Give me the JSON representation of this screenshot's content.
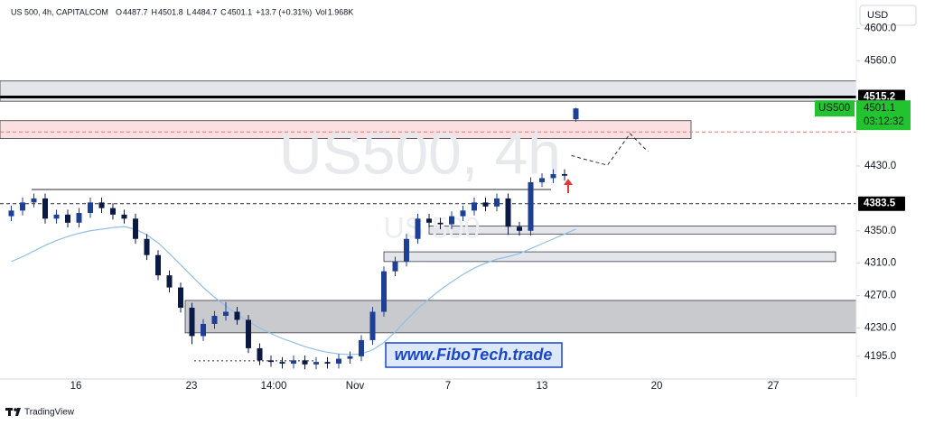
{
  "chart_data": {
    "type": "candlestick",
    "symbol": "US 500, 4h, CAPITALCOM",
    "ohlc_labels": [
      "O",
      "H",
      "L",
      "C"
    ],
    "change": "+13.7 (+0.31%)",
    "volume_label": "Vol",
    "volume": "1.968K",
    "currency": "USD",
    "watermark": "US500, 4h",
    "watermark_small": "US 500",
    "last_price_tag": "US500",
    "countdown": "03:12:32",
    "brand": "www.FiboTech.trade",
    "footer": "TradingView",
    "up_color": "#1d3f96",
    "down_color": "#0b1a45",
    "x": [
      1,
      2,
      3,
      4,
      5,
      6,
      7,
      8,
      9,
      10,
      11,
      12,
      13,
      14,
      15,
      16,
      17,
      18,
      19,
      20,
      21,
      22,
      23,
      24,
      25,
      26,
      27,
      28,
      29,
      30,
      31,
      32,
      33,
      34,
      35,
      36,
      37,
      38,
      39,
      40,
      41,
      42,
      43,
      44,
      45,
      46,
      47,
      48,
      49,
      50,
      51
    ],
    "open": [
      4368,
      4375,
      4385,
      4390,
      4365,
      4370,
      4360,
      4372,
      4385,
      4378,
      4370,
      4365,
      4340,
      4320,
      4295,
      4280,
      4255,
      4220,
      4235,
      4245,
      4250,
      4240,
      4205,
      4190,
      4188,
      4186,
      4190,
      4185,
      4188,
      4186,
      4192,
      4195,
      4215,
      4250,
      4300,
      4312,
      4340,
      4365,
      4360,
      4358,
      4368,
      4375,
      4385,
      4380,
      4390,
      4355,
      4350,
      4410,
      4415,
      4420,
      4487.7
    ],
    "high": [
      4381,
      4391,
      4396,
      4396,
      4376,
      4376,
      4378,
      4391,
      4391,
      4384,
      4376,
      4371,
      4346,
      4326,
      4301,
      4286,
      4261,
      4241,
      4251,
      4262,
      4256,
      4246,
      4211,
      4196,
      4194,
      4196,
      4196,
      4194,
      4194,
      4198,
      4201,
      4221,
      4256,
      4306,
      4318,
      4346,
      4371,
      4371,
      4366,
      4374,
      4381,
      4391,
      4391,
      4396,
      4396,
      4361,
      4416,
      4421,
      4426,
      4426,
      4501.8
    ],
    "low": [
      4362,
      4369,
      4379,
      4359,
      4359,
      4354,
      4354,
      4366,
      4372,
      4364,
      4359,
      4334,
      4314,
      4289,
      4274,
      4249,
      4210,
      4214,
      4229,
      4239,
      4234,
      4199,
      4184,
      4182,
      4180,
      4180,
      4179,
      4179,
      4180,
      4180,
      4186,
      4189,
      4209,
      4244,
      4294,
      4306,
      4334,
      4354,
      4352,
      4352,
      4362,
      4369,
      4374,
      4374,
      4345,
      4344,
      4344,
      4404,
      4409,
      4412,
      4484.7
    ],
    "close": [
      4375,
      4385,
      4390,
      4365,
      4370,
      4360,
      4372,
      4385,
      4378,
      4370,
      4365,
      4340,
      4320,
      4295,
      4280,
      4255,
      4220,
      4235,
      4245,
      4250,
      4240,
      4205,
      4190,
      4188,
      4186,
      4190,
      4185,
      4188,
      4186,
      4192,
      4195,
      4215,
      4250,
      4300,
      4312,
      4340,
      4365,
      4360,
      4358,
      4368,
      4375,
      4385,
      4380,
      4390,
      4355,
      4350,
      4410,
      4415,
      4420,
      4418,
      4501.1
    ],
    "ma": {
      "color": "#90bfe8",
      "values": [
        4312,
        4318,
        4325,
        4332,
        4338,
        4343,
        4347,
        4350,
        4352,
        4354,
        4355,
        4352,
        4345,
        4335,
        4322,
        4308,
        4294,
        4280,
        4268,
        4257,
        4247,
        4238,
        4230,
        4223,
        4217,
        4212,
        4207,
        4203,
        4200,
        4198,
        4197,
        4198,
        4203,
        4212,
        4225,
        4240,
        4254,
        4266,
        4277,
        4287,
        4296,
        4304,
        4310,
        4315,
        4318,
        4322,
        4328,
        4334,
        4340,
        4346,
        4352
      ]
    },
    "forecast": {
      "x": [
        50.6,
        51.6,
        53.8,
        55.8,
        57,
        57.4
      ],
      "values": [
        4443,
        4439,
        4431,
        4470,
        4453,
        4448
      ]
    },
    "xlim": [
      0,
      75.84
    ],
    "ylim": [
      4167,
      4635
    ],
    "xticks": [
      {
        "value": 6.72,
        "label": "16"
      },
      {
        "value": 16.96,
        "label": "23"
      },
      {
        "value": 24.24,
        "label": "14:00"
      },
      {
        "value": 31.44,
        "label": "Nov"
      },
      {
        "value": 39.68,
        "label": "7"
      },
      {
        "value": 48,
        "label": "13"
      },
      {
        "value": 58.16,
        "label": "20"
      },
      {
        "value": 68.48,
        "label": "27"
      }
    ],
    "yticks": [
      {
        "value": 4195,
        "label": "4195.0"
      },
      {
        "value": 4230,
        "label": "4230.0"
      },
      {
        "value": 4270,
        "label": "4270.0"
      },
      {
        "value": 4310,
        "label": "4310.0"
      },
      {
        "value": 4350,
        "label": "4350.0"
      },
      {
        "value": 4430,
        "label": "4430.0"
      },
      {
        "value": 4560,
        "label": "4560.0"
      },
      {
        "value": 4600,
        "label": "4600.0"
      }
    ],
    "zones": [
      {
        "y": [
          4535,
          4510
        ],
        "x": [
          0,
          75.84
        ],
        "color": "#e3e5ea"
      },
      {
        "y": [
          4486,
          4464
        ],
        "x": [
          0,
          61.2
        ],
        "color": "#fbdfe1"
      },
      {
        "y": [
          4264,
          4224
        ],
        "x": [
          16.4,
          75.84
        ],
        "color": "#c9cacd"
      },
      {
        "y": [
          4324,
          4312
        ],
        "x": [
          34,
          74
        ],
        "color": "#e3e5ea"
      },
      {
        "y": [
          4356,
          4346
        ],
        "x": [
          38,
          74
        ],
        "color": "#e3e5ea"
      }
    ],
    "levels": [
      {
        "value": 4515.2,
        "style": "bold",
        "x": [
          0,
          75.84
        ],
        "labeled": true
      },
      {
        "value": 4383.5,
        "style": "dashed",
        "x": [
          0,
          75.84
        ],
        "labeled": true
      },
      {
        "value": 4472,
        "style": "red-dashed",
        "x": [
          0,
          75.84
        ],
        "labeled": false
      },
      {
        "value": 4401,
        "style": "solid",
        "x": [
          2.8,
          48.8
        ],
        "labeled": false
      },
      {
        "value": 4189.4,
        "style": "dotted",
        "x": [
          17.2,
          28
        ],
        "labeled": false
      }
    ]
  }
}
